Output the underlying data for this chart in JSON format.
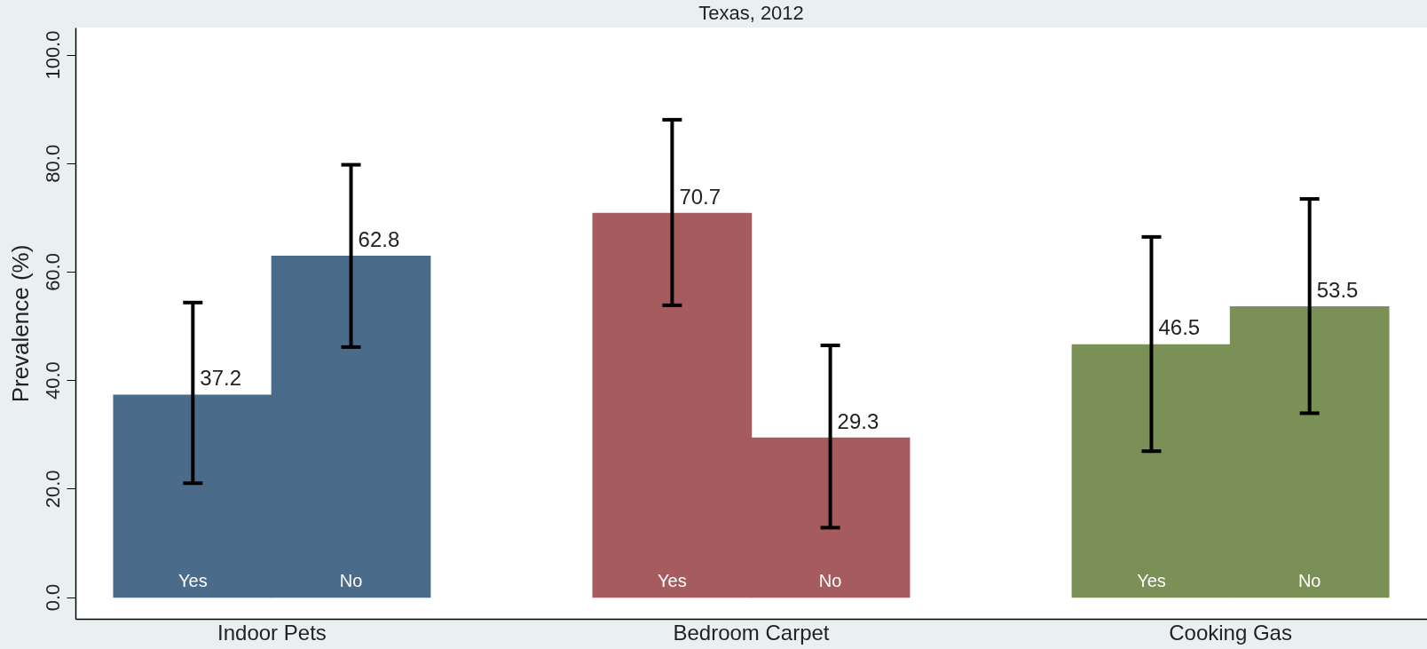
{
  "chart_data": {
    "type": "bar",
    "title": "Texas, 2012",
    "ylabel": "Prevalence (%)",
    "categories": [
      "Indoor Pets",
      "Bedroom Carpet",
      "Cooking Gas"
    ],
    "series": [
      {
        "name": "Yes",
        "colors": [
          "#4a6b8a",
          "#a65c5f",
          "#7a9057"
        ],
        "values": [
          37.2,
          70.7,
          46.5
        ],
        "errors": [
          [
            21.0,
            54.3
          ],
          [
            53.8,
            88.0
          ],
          [
            26.9,
            66.4
          ]
        ]
      },
      {
        "name": "No",
        "colors": [
          "#4a6b8a",
          "#a65c5f",
          "#7a9057"
        ],
        "values": [
          62.8,
          29.3,
          53.5
        ],
        "errors": [
          [
            46.1,
            79.7
          ],
          [
            12.8,
            46.4
          ],
          [
            33.9,
            73.4
          ]
        ]
      }
    ],
    "ylim": [
      -4,
      105
    ],
    "yticks": [
      {
        "value": 0,
        "label": "0.0"
      },
      {
        "value": 20,
        "label": "20.0"
      },
      {
        "value": 40,
        "label": "40.0"
      },
      {
        "value": 60,
        "label": "60.0"
      },
      {
        "value": 80,
        "label": "80.0"
      },
      {
        "value": 100,
        "label": "100.0"
      }
    ],
    "data_labels": true
  }
}
